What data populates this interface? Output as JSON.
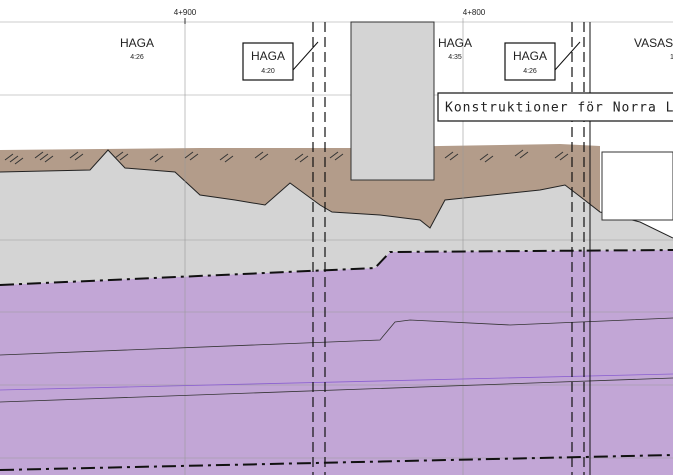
{
  "stations": [
    "4+900",
    "4+800"
  ],
  "properties": [
    {
      "name": "HAGA",
      "number": "4:26"
    },
    {
      "name": "HAGA",
      "number": "4:20"
    },
    {
      "name": "HAGA",
      "number": "4:35"
    },
    {
      "name": "HAGA",
      "number": "4:26"
    },
    {
      "name": "VASAS",
      "number": "1"
    }
  ],
  "annotation": "Konstruktioner för Norra Län"
}
